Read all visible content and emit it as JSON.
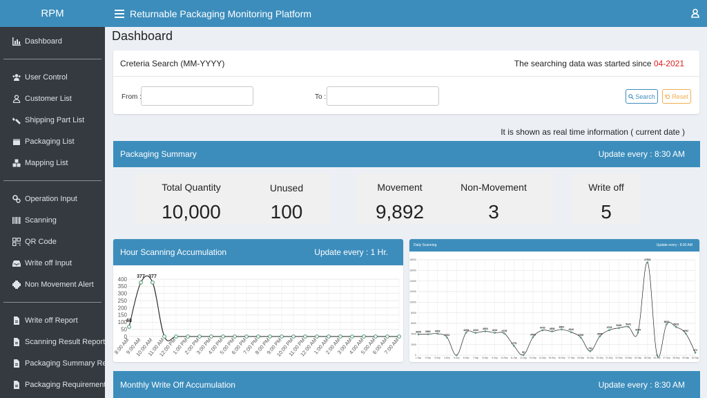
{
  "brand": "RPM",
  "app_title": "Returnable Packaging Monitoring Platform",
  "sidebar": {
    "items": [
      {
        "label": "Dashboard",
        "icon": "bar-chart-icon"
      },
      {
        "label": "User Control",
        "icon": "users-icon"
      },
      {
        "label": "Customer List",
        "icon": "user-icon"
      },
      {
        "label": "Shipping Part List",
        "icon": "parts-icon"
      },
      {
        "label": "Packaging List",
        "icon": "box-icon"
      },
      {
        "label": "Mapping List",
        "icon": "boxes-icon"
      },
      {
        "label": "Operation Input",
        "icon": "cogs-icon"
      },
      {
        "label": "Scanning",
        "icon": "barcode-icon"
      },
      {
        "label": "QR Code",
        "icon": "qrcode-icon"
      },
      {
        "label": "Write off Input",
        "icon": "inbox-icon"
      },
      {
        "label": "Non Movement Alert",
        "icon": "alert-icon"
      },
      {
        "label": "Write off Report",
        "icon": "file-icon"
      },
      {
        "label": "Scanning Result Report",
        "icon": "file-icon"
      },
      {
        "label": "Packaging Summary Report",
        "icon": "file-icon"
      },
      {
        "label": "Packaging Requirement Report",
        "icon": "file-icon"
      }
    ]
  },
  "page_title": "Dashboard",
  "search": {
    "title": "Creteria Search (MM-YYYY)",
    "since_text": "The searching data was started since",
    "since_value": "04-2021",
    "from_label": "From :",
    "from_value": "",
    "to_label": "To :",
    "to_value": "",
    "search_button": "Search",
    "reset_button": "Reset"
  },
  "realtime_note": "It is shown as real time information ( current date )",
  "summary": {
    "title": "Packaging Summary",
    "update": "Update every : 8:30 AM",
    "total_quantity_label": "Total Quantity",
    "total_quantity": "10,000",
    "unused_label": "Unused",
    "unused": "100",
    "movement_label": "Movement",
    "movement": "9,892",
    "non_movement_label": "Non-Movement",
    "non_movement": "3",
    "write_off_label": "Write off",
    "write_off": "5"
  },
  "hour_scanning": {
    "title": "Hour Scanning Accumulation",
    "update": "Update every : 1 Hr."
  },
  "daily_scanning": {
    "title": "Daily Scanning",
    "update": "Update every : 8:30 AM"
  },
  "monthly": {
    "title": "Monthly Write Off Accumulation",
    "update": "Update every : 8:30 AM"
  },
  "colors": {
    "primary": "#3c8dbc",
    "sidebar": "#343a40",
    "accent_red": "#dd1c1c",
    "reset": "#f0ad4e",
    "line": "#222222",
    "point_fill": "#e8f5e9",
    "point_stroke": "#2e7d5a"
  },
  "chart_data": [
    {
      "type": "line",
      "title": "Hour Scanning Accumulation",
      "categories": [
        "8:00 AM",
        "9:00 AM",
        "10:00 AM",
        "11:00 AM",
        "12:00 PM",
        "1:00 PM",
        "2:00 PM",
        "3:00 PM",
        "4:00 PM",
        "5:00 PM",
        "6:00 PM",
        "7:00 PM",
        "8:00 PM",
        "9:00 PM",
        "10:00 PM",
        "11:00 PM",
        "12:00 AM",
        "1:00 AM",
        "2:00 AM",
        "3:00 AM",
        "4:00 AM",
        "5:00 AM",
        "6:00 AM",
        "7:00 AM"
      ],
      "values": [
        68,
        377,
        377,
        0,
        0,
        0,
        0,
        0,
        0,
        0,
        0,
        0,
        0,
        0,
        0,
        0,
        0,
        0,
        0,
        0,
        0,
        0,
        0,
        0
      ],
      "data_labels": [
        "68",
        "377",
        "377",
        "",
        "",
        "",
        "",
        "",
        "",
        "",
        "",
        "",
        "",
        "",
        "",
        "",
        "",
        "",
        "",
        "",
        "",
        "",
        "",
        ""
      ],
      "ylim": [
        0,
        400
      ],
      "yticks": [
        0,
        50,
        100,
        150,
        200,
        250,
        300,
        350,
        400
      ],
      "grid": true,
      "legend": "none"
    },
    {
      "type": "line",
      "title": "Daily Scanning",
      "categories": [
        "1-Sep",
        "2-Sep",
        "3-Sep",
        "4-Sep",
        "5-Sep",
        "6-Sep",
        "7-Sep",
        "8-Sep",
        "9-Sep",
        "10-Sep",
        "11-Sep",
        "12-Sep",
        "13-Sep",
        "14-Sep",
        "15-Sep",
        "16-Sep",
        "17-Sep",
        "18-Sep",
        "19-Sep",
        "20-Sep",
        "21-Sep",
        "22-Sep",
        "23-Sep",
        "24-Sep",
        "25-Sep",
        "26-Sep",
        "27-Sep",
        "28-Sep",
        "29-Sep",
        "30-Sep"
      ],
      "values": [
        3925,
        3962,
        4052,
        3341,
        0,
        4269,
        4223,
        4503,
        4241,
        4105,
        1775,
        52,
        3403,
        4702,
        4505,
        4851,
        4342,
        3345,
        753,
        3549,
        4733,
        5135,
        5341,
        4294,
        17521,
        0,
        5832,
        5322,
        4092,
        472
      ],
      "data_labels": [
        "3925",
        "3962",
        "4052",
        "3341",
        "",
        "4269",
        "4223",
        "4503",
        "4241",
        "4105",
        "1775",
        "52",
        "3403",
        "4702",
        "4505",
        "4851",
        "4342",
        "3345",
        "753",
        "3549",
        "4733",
        "5135",
        "5341",
        "4294",
        "17521",
        "",
        "5832",
        "5322",
        "4092",
        "472"
      ],
      "ylim": [
        0,
        18000
      ],
      "yticks": [
        0,
        2000,
        4000,
        6000,
        8000,
        10000,
        12000,
        14000,
        16000,
        18000
      ],
      "grid": true,
      "legend": "none"
    }
  ]
}
